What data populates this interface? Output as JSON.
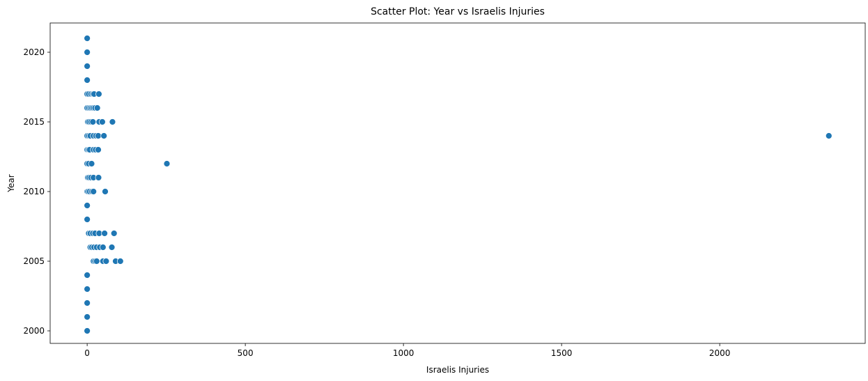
{
  "chart_data": {
    "type": "scatter",
    "title": "Scatter Plot: Year vs Israelis Injuries",
    "xlabel": "Israelis Injuries",
    "ylabel": "Year",
    "xlim": [
      -117,
      2460
    ],
    "ylim": [
      1999.1,
      2022.1
    ],
    "xticks": [
      0,
      500,
      1000,
      1500,
      2000
    ],
    "yticks": [
      2000,
      2005,
      2010,
      2015,
      2020
    ],
    "xtick_labels": [
      "0",
      "500",
      "1000",
      "1500",
      "2000"
    ],
    "ytick_labels": [
      "2000",
      "2005",
      "2010",
      "2015",
      "2020"
    ],
    "grid": false,
    "point_color": "#1f77b4",
    "points": [
      [
        0,
        2000
      ],
      [
        0,
        2001
      ],
      [
        0,
        2002
      ],
      [
        0,
        2003
      ],
      [
        0,
        2004
      ],
      [
        20,
        2005
      ],
      [
        25,
        2005
      ],
      [
        30,
        2005
      ],
      [
        50,
        2005
      ],
      [
        60,
        2005
      ],
      [
        90,
        2005
      ],
      [
        105,
        2005
      ],
      [
        10,
        2006
      ],
      [
        15,
        2006
      ],
      [
        22,
        2006
      ],
      [
        30,
        2006
      ],
      [
        40,
        2006
      ],
      [
        50,
        2006
      ],
      [
        78,
        2006
      ],
      [
        5,
        2007
      ],
      [
        10,
        2007
      ],
      [
        18,
        2007
      ],
      [
        25,
        2007
      ],
      [
        38,
        2007
      ],
      [
        55,
        2007
      ],
      [
        85,
        2007
      ],
      [
        0,
        2008
      ],
      [
        0,
        2009
      ],
      [
        0,
        2010
      ],
      [
        3,
        2010
      ],
      [
        8,
        2010
      ],
      [
        15,
        2010
      ],
      [
        20,
        2010
      ],
      [
        57,
        2010
      ],
      [
        2,
        2011
      ],
      [
        6,
        2011
      ],
      [
        12,
        2011
      ],
      [
        20,
        2011
      ],
      [
        36,
        2011
      ],
      [
        0,
        2012
      ],
      [
        5,
        2012
      ],
      [
        14,
        2012
      ],
      [
        252,
        2012
      ],
      [
        0,
        2013
      ],
      [
        4,
        2013
      ],
      [
        8,
        2013
      ],
      [
        20,
        2013
      ],
      [
        27,
        2013
      ],
      [
        35,
        2013
      ],
      [
        0,
        2014
      ],
      [
        5,
        2014
      ],
      [
        10,
        2014
      ],
      [
        20,
        2014
      ],
      [
        28,
        2014
      ],
      [
        35,
        2014
      ],
      [
        53,
        2014
      ],
      [
        2345,
        2014
      ],
      [
        2,
        2015
      ],
      [
        6,
        2015
      ],
      [
        12,
        2015
      ],
      [
        18,
        2015
      ],
      [
        38,
        2015
      ],
      [
        48,
        2015
      ],
      [
        80,
        2015
      ],
      [
        0,
        2016
      ],
      [
        5,
        2016
      ],
      [
        10,
        2016
      ],
      [
        15,
        2016
      ],
      [
        20,
        2016
      ],
      [
        25,
        2016
      ],
      [
        32,
        2016
      ],
      [
        0,
        2017
      ],
      [
        5,
        2017
      ],
      [
        12,
        2017
      ],
      [
        18,
        2017
      ],
      [
        22,
        2017
      ],
      [
        37,
        2017
      ],
      [
        0,
        2018
      ],
      [
        0,
        2019
      ],
      [
        0,
        2020
      ],
      [
        0,
        2021
      ]
    ]
  }
}
